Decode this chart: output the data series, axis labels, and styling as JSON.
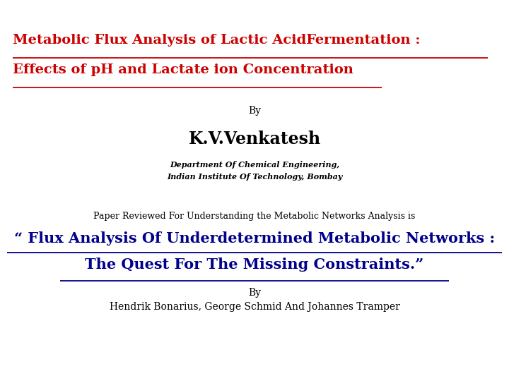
{
  "bg_color": "#ffffff",
  "title_line1": "Metabolic Flux Analysis of Lactic AcidFermentation :",
  "title_line2": "Effects of pH and Lactate ion Concentration",
  "title_color": "#cc0000",
  "by1": "By",
  "author1": "K.V.Venkatesh",
  "dept1": "Department Of Chemical Engineering,",
  "inst1": "Indian Institute Of Technology, Bombay",
  "paper_reviewed": "Paper Reviewed For Understanding the Metabolic Networks Analysis is",
  "quote_line1": "“ Flux Analysis Of Underdetermined Metabolic Networks :",
  "quote_line2": "The Quest For The Missing Constraints.”",
  "quote_color": "#00008B",
  "by2": "By",
  "author2": "Hendrik Bonarius, George Schmid And Johannes Tramper",
  "title_fs": 14,
  "author1_fs": 17,
  "dept_fs": 8,
  "by_fs": 10,
  "paper_fs": 9,
  "quote_fs": 15,
  "author2_fs": 10
}
